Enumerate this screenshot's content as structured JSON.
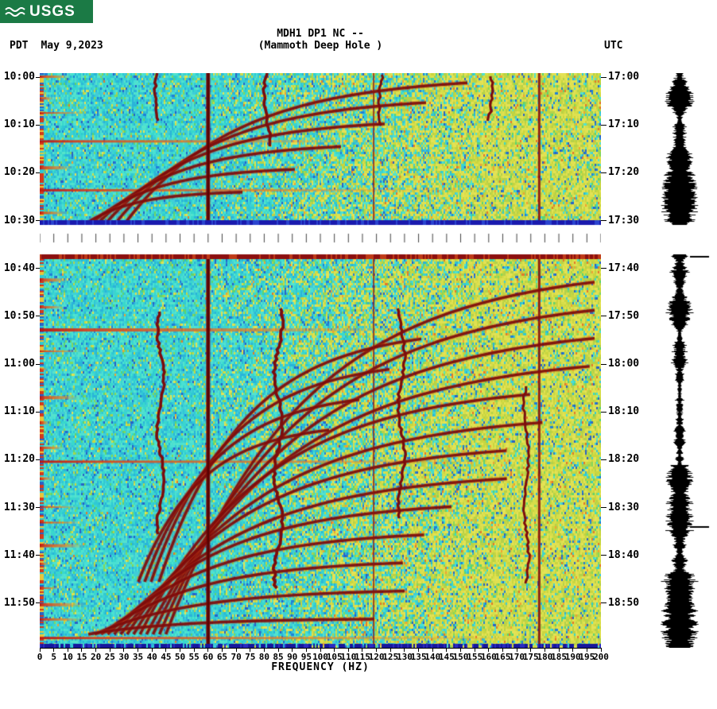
{
  "logo": {
    "text": "USGS",
    "bg": "#1b7a45"
  },
  "header": {
    "line1": "MDH1 DP1 NC --",
    "line2": "(Mammoth Deep Hole )",
    "left_label": "PDT",
    "date": "May 9,2023",
    "right_label": "UTC"
  },
  "axes": {
    "xlabel": "FREQUENCY (HZ)"
  },
  "chart_data": {
    "type": "heatmap",
    "subtype": "seismic-spectrogram",
    "title": "MDH1 DP1 NC -- (Mammoth Deep Hole )",
    "date": "May 9,2023",
    "xlabel": "FREQUENCY (HZ)",
    "x_range_hz": [
      0,
      200
    ],
    "x_tick_step_hz": 5,
    "x_tick_labels": [
      "0",
      "5",
      "10",
      "15",
      "20",
      "25",
      "30",
      "35",
      "40",
      "45",
      "50",
      "55",
      "60",
      "65",
      "70",
      "75",
      "80",
      "85",
      "90",
      "95",
      "100",
      "105",
      "110",
      "115",
      "120",
      "125",
      "130",
      "135",
      "140",
      "145",
      "150",
      "155",
      "160",
      "165",
      "170",
      "175",
      "180",
      "185",
      "190",
      "195",
      "200"
    ],
    "y_left_timezone": "PDT",
    "y_left_ticks": [
      "10:00",
      "10:10",
      "10:20",
      "10:30",
      "10:40",
      "10:50",
      "11:00",
      "11:10",
      "11:20",
      "11:30",
      "11:40",
      "11:50"
    ],
    "y_right_timezone": "UTC",
    "y_right_ticks": [
      "17:00",
      "17:10",
      "17:20",
      "17:30",
      "17:40",
      "17:50",
      "18:00",
      "18:10",
      "18:20",
      "18:30",
      "18:40",
      "18:50"
    ],
    "data_gap": {
      "approx_start": "10:32 PDT",
      "approx_end": "10:38 PDT"
    },
    "persistent_vertical_lines_hz": [
      60,
      119,
      178
    ],
    "features": [
      "broadband background noise: turquoise (lower power) grading to yellow-green (higher power) above ~100 Hz",
      "repeated short broadband bursts visible as red horizontal streaks starting at the low-frequency edge",
      "families of upward-curving dark-red harmonic glide arcs fanning from low toward high frequency in both panels",
      "wavy near-vertical dark-red traces near ~42, ~81, ~122, ~130 and ~173 Hz",
      "dark blue row at the bottom of the upper panel, dark red row at the top of the lower panel, dark blue row at panel bottom",
      "black ground-motion amplitude trace plotted in the right margin with section marks at ~17:38 and ~18:35 UTC"
    ],
    "palette": {
      "low": "#35d6cc",
      "mid": "#cfd94a",
      "high": "#e05a20",
      "max": "#7a0808",
      "gap": "#ffffff"
    }
  }
}
